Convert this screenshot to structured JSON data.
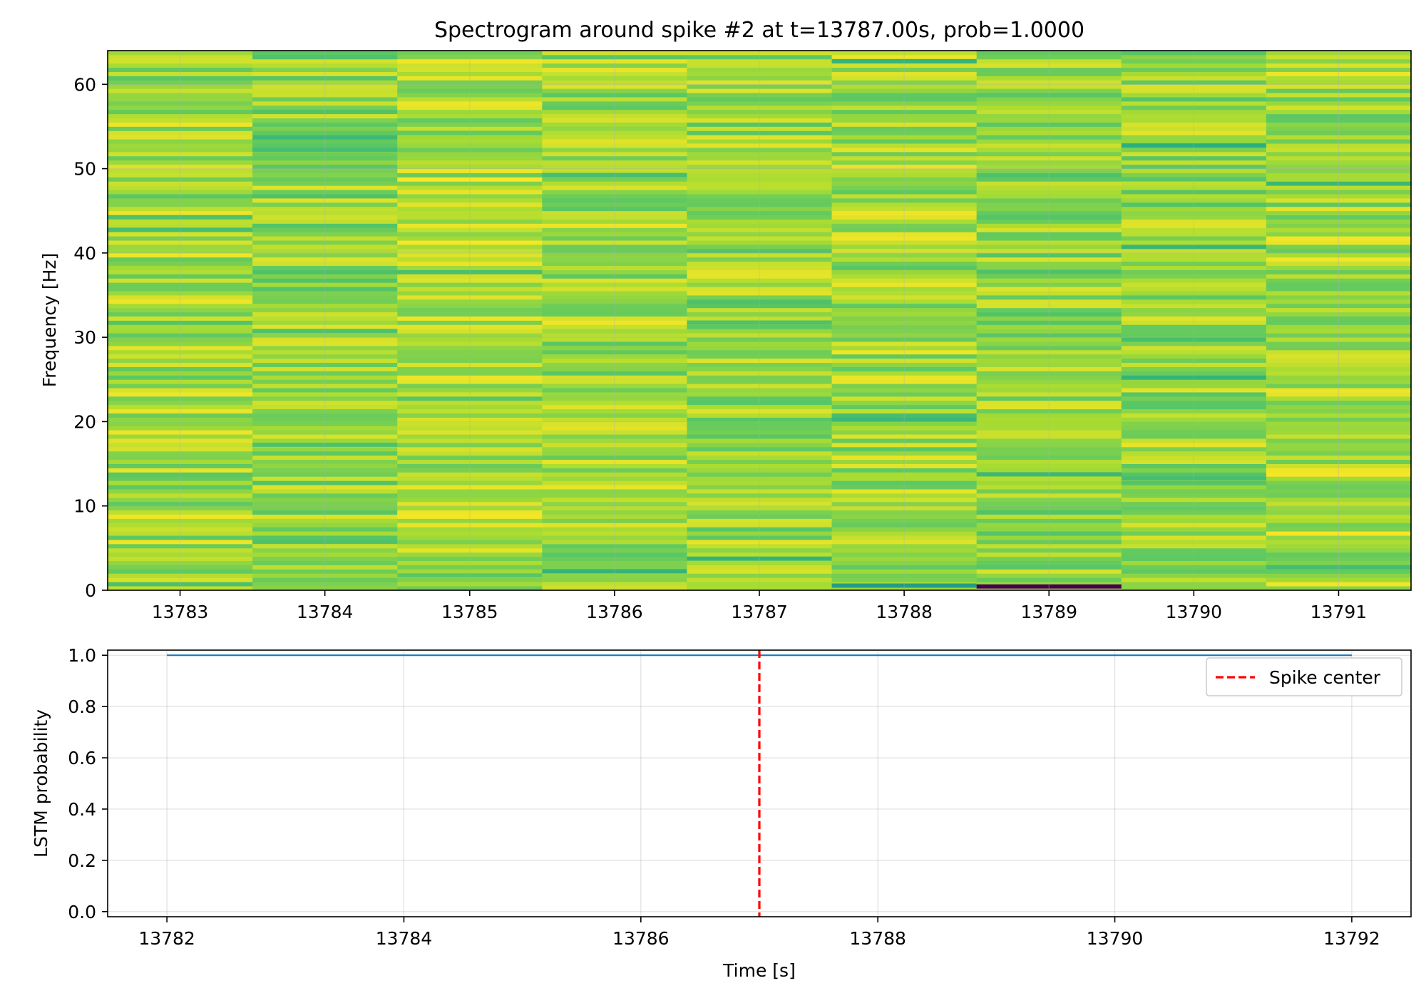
{
  "chart_data": [
    {
      "type": "heatmap",
      "title": "Spectrogram around spike #2 at t=13787.00s, prob=1.0000",
      "xlabel": "",
      "ylabel": "Frequency [Hz]",
      "xlim": [
        13782.5,
        13791.5
      ],
      "ylim": [
        0,
        64
      ],
      "x_ticks": [
        13783,
        13784,
        13785,
        13786,
        13787,
        13788,
        13789,
        13790,
        13791
      ],
      "y_ticks": [
        0,
        10,
        20,
        30,
        40,
        50,
        60
      ],
      "time_bins": [
        13783,
        13784,
        13785,
        13786,
        13787,
        13788,
        13789,
        13790,
        13791
      ],
      "colormap": "viridis",
      "value_range": [
        0.55,
        1.0
      ],
      "grid": true,
      "column_means": [
        0.86,
        0.84,
        0.88,
        0.86,
        0.85,
        0.86,
        0.84,
        0.85,
        0.87
      ],
      "features": [
        {
          "time": 13783,
          "freq": 42.5,
          "value": 0.7
        },
        {
          "time": 13783,
          "freq": 44,
          "value": 0.72
        },
        {
          "time": 13784,
          "freq": 52,
          "value": 0.7
        },
        {
          "time": 13784,
          "freq": 30.5,
          "value": 0.72
        },
        {
          "time": 13784,
          "freq": 17,
          "value": 0.72
        },
        {
          "time": 13784,
          "freq": 5.5,
          "value": 0.72
        },
        {
          "time": 13785,
          "freq": 54,
          "value": 0.76
        },
        {
          "time": 13785,
          "freq": 1.5,
          "value": 0.74
        },
        {
          "time": 13786,
          "freq": 49,
          "value": 0.7
        },
        {
          "time": 13786,
          "freq": 2,
          "value": 0.66
        },
        {
          "time": 13787,
          "freq": 3.5,
          "value": 0.66
        },
        {
          "time": 13787,
          "freq": 31.5,
          "value": 0.72
        },
        {
          "time": 13788,
          "freq": 62.5,
          "value": 0.66
        },
        {
          "time": 13788,
          "freq": 0.3,
          "value": 0.55
        },
        {
          "time": 13789,
          "freq": 13.5,
          "value": 0.68
        },
        {
          "time": 13789,
          "freq": 0.2,
          "value": 0.0
        },
        {
          "time": 13789,
          "freq": 37.5,
          "value": 0.72
        },
        {
          "time": 13790,
          "freq": 52.5,
          "value": 0.64
        },
        {
          "time": 13790,
          "freq": 48.5,
          "value": 0.74
        },
        {
          "time": 13790,
          "freq": 13,
          "value": 0.7
        },
        {
          "time": 13791,
          "freq": 2.5,
          "value": 0.7
        }
      ]
    },
    {
      "type": "line",
      "title": "",
      "xlabel": "Time [s]",
      "ylabel": "LSTM probability",
      "xlim": [
        13781.5,
        13792.5
      ],
      "ylim": [
        -0.02,
        1.02
      ],
      "x_ticks": [
        13782,
        13784,
        13786,
        13788,
        13790,
        13792
      ],
      "y_ticks": [
        0.0,
        0.2,
        0.4,
        0.6,
        0.8,
        1.0
      ],
      "grid": true,
      "series": [
        {
          "name": "",
          "color": "#1f77b4",
          "x": [
            13782,
            13783,
            13784,
            13785,
            13786,
            13787,
            13788,
            13789,
            13790,
            13791,
            13792
          ],
          "y": [
            1.0,
            1.0,
            1.0,
            1.0,
            1.0,
            1.0,
            1.0,
            1.0,
            1.0,
            1.0,
            1.0
          ]
        }
      ],
      "vline": {
        "x": 13787,
        "color": "#ff0000",
        "style": "dashed",
        "name": "Spike center"
      },
      "legend_position": "upper right"
    }
  ]
}
